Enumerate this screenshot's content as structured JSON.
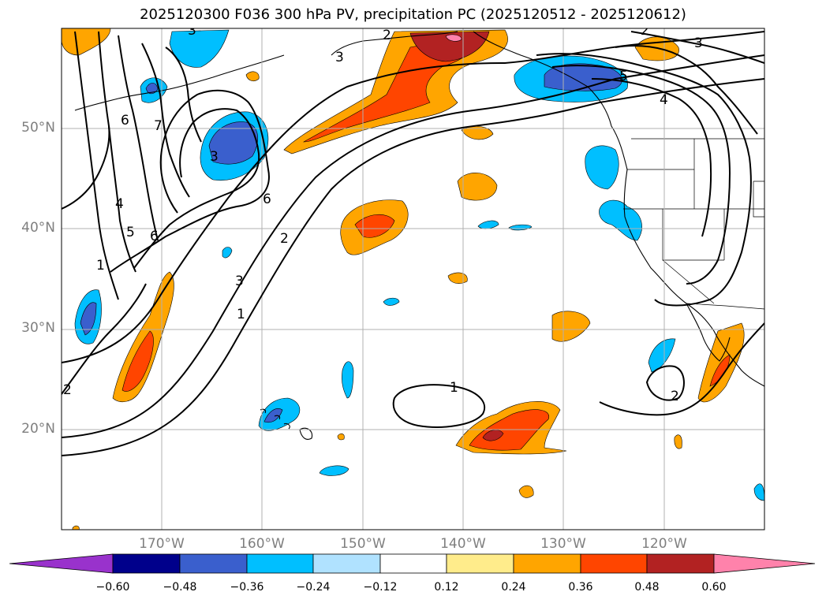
{
  "title": "2025120300 F036 300 hPa PV, precipitation PC (2025120512 - 2025120612)",
  "map": {
    "projection": "PlateCarree",
    "lon_range": [
      -180,
      -110
    ],
    "lat_range": [
      10,
      60
    ],
    "lat_labels": [
      "50°N",
      "40°N",
      "30°N",
      "20°N"
    ],
    "lon_labels": [
      "170°W",
      "160°W",
      "150°W",
      "140°W",
      "130°W",
      "120°W"
    ],
    "contour_labels": [
      "2",
      "3",
      "3",
      "5",
      "4",
      "3",
      "6",
      "7",
      "3",
      "6",
      "2",
      "3",
      "1",
      "4",
      "5",
      "6",
      "1",
      "1",
      "2",
      "2",
      "2"
    ]
  },
  "colorbar": {
    "ticks": [
      "−0.60",
      "−0.48",
      "−0.36",
      "−0.24",
      "−0.12",
      "0.12",
      "0.24",
      "0.36",
      "0.48",
      "0.60"
    ],
    "colors": [
      "#9932cc",
      "#00008b",
      "#3a5fcd",
      "#00bfff",
      "#b0e2ff",
      "#ffffff",
      "#ffec8b",
      "#ffa500",
      "#ff4500",
      "#b22222",
      "#ff82ab",
      "#ff82ab"
    ]
  }
}
